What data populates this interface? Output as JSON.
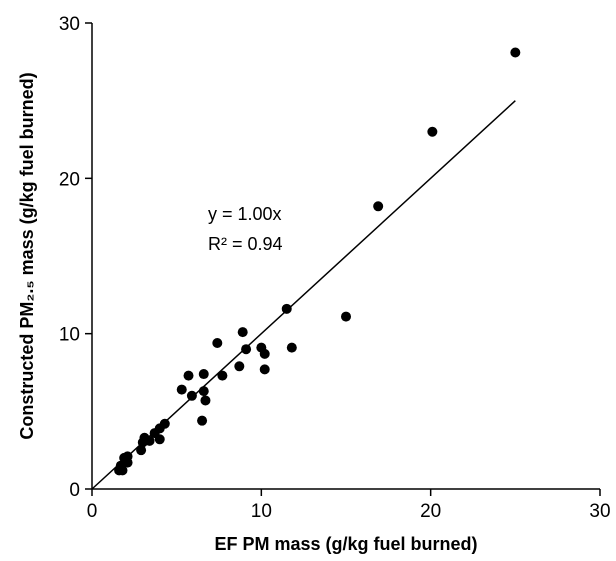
{
  "chart_data": {
    "type": "scatter",
    "x_label": "EF PM mass (g/kg fuel burned)",
    "y_label": "Constructed PM₂.₅ mass (g/kg fuel burned)",
    "annotations": [
      "y = 1.00x",
      "R² = 0.94"
    ],
    "xlim": [
      0,
      30
    ],
    "ylim": [
      0,
      30
    ],
    "xticks": [
      0,
      10,
      20,
      30
    ],
    "yticks": [
      0,
      10,
      20,
      30
    ],
    "grid": false,
    "color": "#000000",
    "x": [
      25.0,
      20.1,
      16.9,
      15.0,
      11.5,
      11.8,
      10.0,
      10.2,
      10.2,
      8.9,
      9.1,
      8.7,
      7.4,
      7.7,
      6.6,
      5.7,
      5.3,
      5.9,
      6.6,
      6.7,
      6.5,
      4.3,
      4.0,
      3.7,
      4.0,
      3.4,
      3.0,
      2.9,
      3.1,
      2.1,
      1.9,
      2.1,
      1.7,
      1.6,
      1.8
    ],
    "y": [
      28.1,
      23.0,
      18.2,
      11.1,
      11.6,
      9.1,
      9.1,
      8.7,
      7.7,
      10.1,
      9.0,
      7.9,
      9.4,
      7.3,
      7.4,
      7.3,
      6.4,
      6.0,
      6.3,
      5.7,
      4.4,
      4.2,
      3.9,
      3.6,
      3.2,
      3.1,
      3.0,
      2.5,
      3.3,
      2.1,
      2.0,
      1.7,
      1.5,
      1.2,
      1.2
    ],
    "trendline": {
      "x": [
        0,
        25
      ],
      "y": [
        0,
        25
      ]
    }
  }
}
